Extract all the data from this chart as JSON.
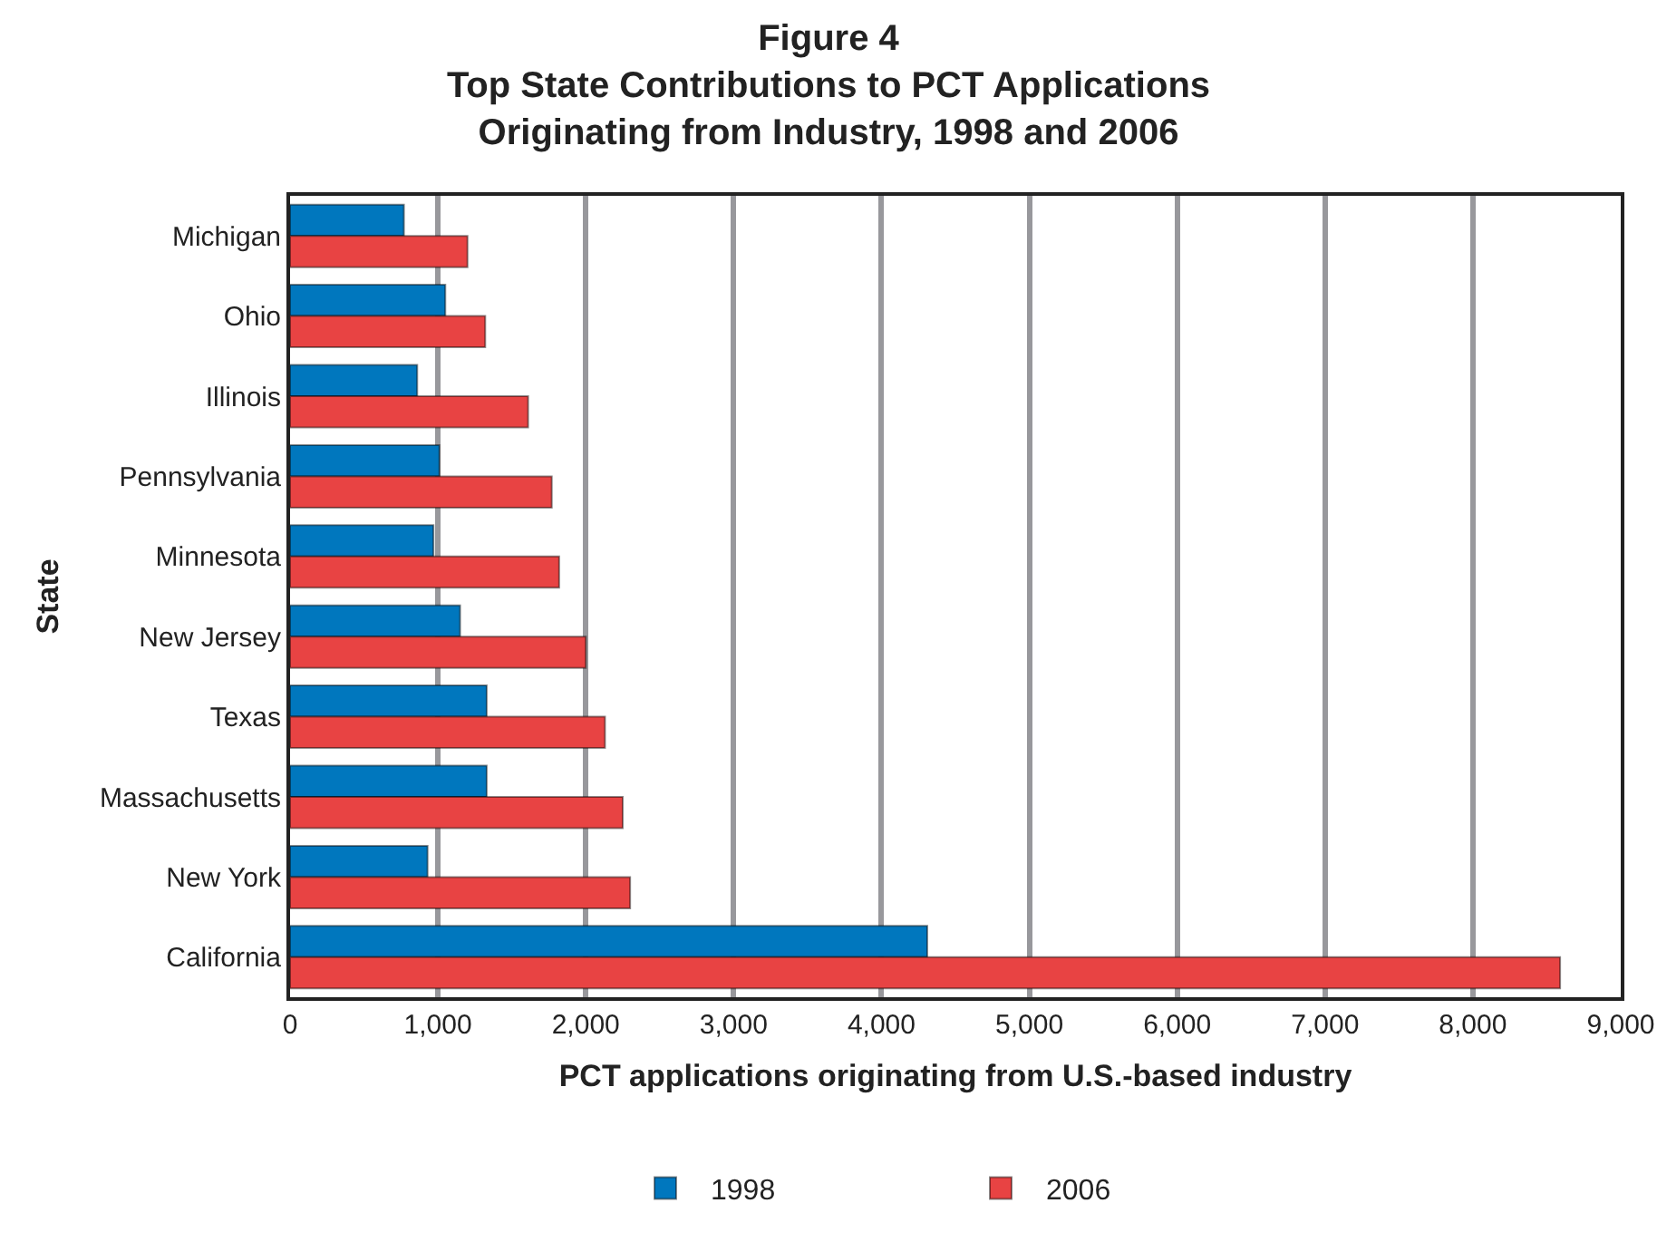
{
  "chart_data": {
    "type": "bar",
    "orientation": "horizontal",
    "title": "Figure 4\nTop State Contributions to PCT Applications\nOriginating from Industry, 1998 and 2006",
    "xlabel": "PCT applications originating from U.S.-based industry",
    "ylabel": "State",
    "categories": [
      "Michigan",
      "Ohio",
      "Illinois",
      "Pennsylvania",
      "Minnesota",
      "New Jersey",
      "Texas",
      "Massachusetts",
      "New York",
      "California"
    ],
    "series": [
      {
        "name": "1998",
        "color": "#0077be",
        "values": [
          770,
          1050,
          860,
          1010,
          970,
          1150,
          1330,
          1330,
          930,
          4310
        ]
      },
      {
        "name": "2006",
        "color": "#e84343",
        "values": [
          1200,
          1320,
          1610,
          1770,
          1820,
          2000,
          2130,
          2250,
          2300,
          8590
        ]
      }
    ],
    "xlim": [
      0,
      9000
    ],
    "xticks": [
      {
        "value": 0,
        "label": "0"
      },
      {
        "value": 1000,
        "label": "1,000"
      },
      {
        "value": 2000,
        "label": "2,000"
      },
      {
        "value": 3000,
        "label": "3,000"
      },
      {
        "value": 4000,
        "label": "4,000"
      },
      {
        "value": 5000,
        "label": "5,000"
      },
      {
        "value": 6000,
        "label": "6,000"
      },
      {
        "value": 7000,
        "label": "7,000"
      },
      {
        "value": 8000,
        "label": "8,000"
      },
      {
        "value": 9000,
        "label": "9,000"
      }
    ],
    "grid": "x",
    "legend": "bottom"
  }
}
